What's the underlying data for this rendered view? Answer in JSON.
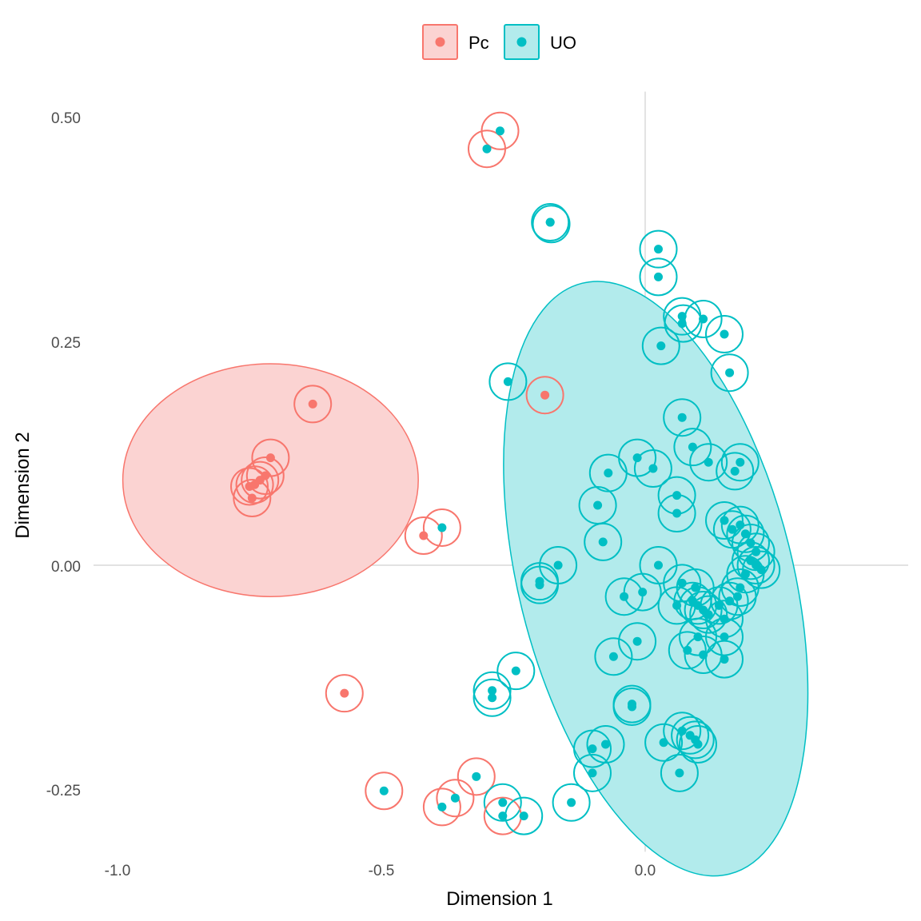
{
  "chart_data": {
    "type": "scatter",
    "xlabel": "Dimension 1",
    "ylabel": "Dimension 2",
    "xlim": [
      -1.0,
      0.4
    ],
    "ylim": [
      -0.32,
      0.52
    ],
    "x_ticks": [
      -1.0,
      -0.5,
      0.0
    ],
    "x_tick_labels": [
      "-1.0",
      "-0.5",
      "0.0"
    ],
    "y_ticks": [
      0.5,
      0.25,
      0.0,
      -0.25
    ],
    "y_tick_labels": [
      "0.50",
      "0.25",
      "0.00",
      "-0.25"
    ],
    "reference_lines": {
      "x": 0,
      "y": 0
    },
    "grid": false,
    "legend_position": "top",
    "colors": {
      "Pc": "#F8766D",
      "UO": "#00BFC4",
      "Pc_fill": "#FBD3D2",
      "UO_fill": "#B2EBEC",
      "refline": "#d0d0d0"
    },
    "series": [
      {
        "name": "Pc",
        "color": "#F8766D",
        "ellipse": {
          "center": [
            -0.71,
            0.095
          ],
          "radii": [
            0.28,
            0.13
          ],
          "angle": 0
        },
        "points": [
          {
            "x": -0.63,
            "y": 0.18,
            "cx": -0.63,
            "cy": 0.18
          },
          {
            "x": -0.71,
            "y": 0.12,
            "cx": -0.71,
            "cy": 0.12
          },
          {
            "x": -0.72,
            "y": 0.1,
            "cx": -0.72,
            "cy": 0.1
          },
          {
            "x": -0.73,
            "y": 0.095,
            "cx": -0.73,
            "cy": 0.095
          },
          {
            "x": -0.74,
            "y": 0.09,
            "cx": -0.74,
            "cy": 0.09
          },
          {
            "x": -0.745,
            "y": 0.075,
            "cx": -0.745,
            "cy": 0.075
          },
          {
            "x": -0.75,
            "y": 0.088,
            "cx": -0.75,
            "cy": 0.088
          },
          {
            "x": -0.42,
            "y": 0.033,
            "cx": -0.42,
            "cy": 0.033
          },
          {
            "x": -0.19,
            "y": 0.19,
            "cx": -0.19,
            "cy": 0.19
          },
          {
            "x": -0.57,
            "y": -0.143,
            "cx": -0.57,
            "cy": -0.143
          }
        ]
      },
      {
        "name": "UO",
        "color": "#00BFC4",
        "ellipse": {
          "center": [
            0.02,
            -0.015
          ],
          "radii": [
            0.26,
            0.34
          ],
          "angle": -14
        },
        "points": [
          {
            "x": -0.275,
            "y": 0.485,
            "cx": -0.275,
            "cy": 0.485,
            "ring": "Pc"
          },
          {
            "x": -0.3,
            "y": 0.465,
            "cx": -0.3,
            "cy": 0.465,
            "ring": "Pc"
          },
          {
            "x": -0.18,
            "y": 0.383,
            "cx": -0.18,
            "cy": 0.383
          },
          {
            "x": -0.18,
            "y": 0.383,
            "cx": -0.178,
            "cy": 0.381
          },
          {
            "x": 0.025,
            "y": 0.353,
            "cx": 0.025,
            "cy": 0.353
          },
          {
            "x": 0.025,
            "y": 0.322,
            "cx": 0.025,
            "cy": 0.322
          },
          {
            "x": 0.07,
            "y": 0.278,
            "cx": 0.07,
            "cy": 0.278
          },
          {
            "x": 0.07,
            "y": 0.27,
            "cx": 0.072,
            "cy": 0.27
          },
          {
            "x": 0.11,
            "y": 0.275,
            "cx": 0.11,
            "cy": 0.275
          },
          {
            "x": 0.15,
            "y": 0.258,
            "cx": 0.15,
            "cy": 0.258
          },
          {
            "x": 0.03,
            "y": 0.245,
            "cx": 0.03,
            "cy": 0.245
          },
          {
            "x": 0.16,
            "y": 0.215,
            "cx": 0.16,
            "cy": 0.215
          },
          {
            "x": -0.26,
            "y": 0.205,
            "cx": -0.26,
            "cy": 0.205
          },
          {
            "x": 0.07,
            "y": 0.165,
            "cx": 0.07,
            "cy": 0.165
          },
          {
            "x": 0.09,
            "y": 0.132,
            "cx": 0.09,
            "cy": 0.132
          },
          {
            "x": -0.015,
            "y": 0.12,
            "cx": -0.015,
            "cy": 0.12
          },
          {
            "x": 0.015,
            "y": 0.108,
            "cx": 0.015,
            "cy": 0.108
          },
          {
            "x": 0.12,
            "y": 0.115,
            "cx": 0.12,
            "cy": 0.115
          },
          {
            "x": 0.18,
            "y": 0.115,
            "cx": 0.18,
            "cy": 0.115
          },
          {
            "x": 0.17,
            "y": 0.105,
            "cx": 0.17,
            "cy": 0.105
          },
          {
            "x": -0.07,
            "y": 0.103,
            "cx": -0.07,
            "cy": 0.103
          },
          {
            "x": 0.06,
            "y": 0.078,
            "cx": 0.06,
            "cy": 0.078
          },
          {
            "x": -0.09,
            "y": 0.067,
            "cx": -0.09,
            "cy": 0.067
          },
          {
            "x": 0.06,
            "y": 0.058,
            "cx": 0.06,
            "cy": 0.058
          },
          {
            "x": -0.08,
            "y": 0.026,
            "cx": -0.08,
            "cy": 0.026
          },
          {
            "x": -0.165,
            "y": 0.0,
            "cx": -0.165,
            "cy": 0.0
          },
          {
            "x": -0.2,
            "y": -0.018,
            "cx": -0.2,
            "cy": -0.018
          },
          {
            "x": -0.2,
            "y": -0.022,
            "cx": -0.2,
            "cy": -0.022
          },
          {
            "x": -0.385,
            "y": 0.042,
            "cx": -0.385,
            "cy": 0.042,
            "ring": "Pc"
          },
          {
            "x": 0.15,
            "y": 0.05,
            "cx": 0.15,
            "cy": 0.05
          },
          {
            "x": 0.18,
            "y": 0.045,
            "cx": 0.18,
            "cy": 0.045
          },
          {
            "x": 0.19,
            "y": 0.035,
            "cx": 0.19,
            "cy": 0.035
          },
          {
            "x": 0.2,
            "y": 0.025,
            "cx": 0.2,
            "cy": 0.025
          },
          {
            "x": 0.21,
            "y": 0.015,
            "cx": 0.21,
            "cy": 0.015
          },
          {
            "x": 0.2,
            "y": 0.005,
            "cx": 0.2,
            "cy": 0.005
          },
          {
            "x": 0.21,
            "y": 0.0,
            "cx": 0.21,
            "cy": 0.0
          },
          {
            "x": 0.22,
            "y": -0.005,
            "cx": 0.22,
            "cy": -0.005
          },
          {
            "x": 0.19,
            "y": -0.01,
            "cx": 0.19,
            "cy": -0.01
          },
          {
            "x": 0.165,
            "y": 0.04,
            "cx": 0.165,
            "cy": 0.04
          },
          {
            "x": 0.025,
            "y": 0.0,
            "cx": 0.025,
            "cy": 0.0
          },
          {
            "x": 0.07,
            "y": -0.02,
            "cx": 0.07,
            "cy": -0.02
          },
          {
            "x": 0.095,
            "y": -0.025,
            "cx": 0.095,
            "cy": -0.025
          },
          {
            "x": 0.09,
            "y": -0.04,
            "cx": 0.09,
            "cy": -0.04
          },
          {
            "x": 0.1,
            "y": -0.045,
            "cx": 0.1,
            "cy": -0.045
          },
          {
            "x": 0.11,
            "y": -0.05,
            "cx": 0.11,
            "cy": -0.05
          },
          {
            "x": 0.12,
            "y": -0.055,
            "cx": 0.12,
            "cy": -0.055
          },
          {
            "x": 0.14,
            "y": -0.045,
            "cx": 0.14,
            "cy": -0.045
          },
          {
            "x": 0.16,
            "y": -0.04,
            "cx": 0.16,
            "cy": -0.04
          },
          {
            "x": 0.175,
            "y": -0.035,
            "cx": 0.175,
            "cy": -0.035
          },
          {
            "x": 0.18,
            "y": -0.025,
            "cx": 0.18,
            "cy": -0.025
          },
          {
            "x": 0.15,
            "y": -0.06,
            "cx": 0.15,
            "cy": -0.06
          },
          {
            "x": 0.06,
            "y": -0.045,
            "cx": 0.06,
            "cy": -0.045
          },
          {
            "x": -0.005,
            "y": -0.03,
            "cx": -0.005,
            "cy": -0.03
          },
          {
            "x": -0.04,
            "y": -0.035,
            "cx": -0.04,
            "cy": -0.035
          },
          {
            "x": 0.1,
            "y": -0.08,
            "cx": 0.1,
            "cy": -0.08
          },
          {
            "x": 0.15,
            "y": -0.08,
            "cx": 0.15,
            "cy": -0.08
          },
          {
            "x": -0.015,
            "y": -0.085,
            "cx": -0.015,
            "cy": -0.085
          },
          {
            "x": 0.08,
            "y": -0.095,
            "cx": 0.08,
            "cy": -0.095
          },
          {
            "x": 0.11,
            "y": -0.1,
            "cx": 0.11,
            "cy": -0.1
          },
          {
            "x": 0.15,
            "y": -0.105,
            "cx": 0.15,
            "cy": -0.105
          },
          {
            "x": -0.06,
            "y": -0.102,
            "cx": -0.06,
            "cy": -0.102
          },
          {
            "x": -0.025,
            "y": -0.155,
            "cx": -0.025,
            "cy": -0.155
          },
          {
            "x": -0.025,
            "y": -0.158,
            "cx": -0.025,
            "cy": -0.158
          },
          {
            "x": -0.245,
            "y": -0.118,
            "cx": -0.245,
            "cy": -0.118
          },
          {
            "x": -0.29,
            "y": -0.14,
            "cx": -0.29,
            "cy": -0.14
          },
          {
            "x": -0.29,
            "y": -0.148,
            "cx": -0.29,
            "cy": -0.148
          },
          {
            "x": 0.07,
            "y": -0.185,
            "cx": 0.07,
            "cy": -0.185
          },
          {
            "x": 0.085,
            "y": -0.19,
            "cx": 0.085,
            "cy": -0.19
          },
          {
            "x": 0.095,
            "y": -0.195,
            "cx": 0.095,
            "cy": -0.195
          },
          {
            "x": 0.1,
            "y": -0.2,
            "cx": 0.1,
            "cy": -0.2
          },
          {
            "x": 0.035,
            "y": -0.198,
            "cx": 0.035,
            "cy": -0.198
          },
          {
            "x": -0.075,
            "y": -0.2,
            "cx": -0.075,
            "cy": -0.2
          },
          {
            "x": -0.1,
            "y": -0.205,
            "cx": -0.1,
            "cy": -0.205
          },
          {
            "x": -0.1,
            "y": -0.232,
            "cx": -0.1,
            "cy": -0.232
          },
          {
            "x": 0.065,
            "y": -0.232,
            "cx": 0.065,
            "cy": -0.232
          },
          {
            "x": -0.32,
            "y": -0.236,
            "cx": -0.32,
            "cy": -0.236,
            "ring": "Pc"
          },
          {
            "x": -0.495,
            "y": -0.252,
            "cx": -0.495,
            "cy": -0.252,
            "ring": "Pc"
          },
          {
            "x": -0.36,
            "y": -0.26,
            "cx": -0.36,
            "cy": -0.26,
            "ring": "Pc"
          },
          {
            "x": -0.385,
            "y": -0.27,
            "cx": -0.385,
            "cy": -0.27,
            "ring": "Pc"
          },
          {
            "x": -0.14,
            "y": -0.265,
            "cx": -0.14,
            "cy": -0.265
          },
          {
            "x": -0.27,
            "y": -0.265,
            "cx": -0.27,
            "cy": -0.265
          },
          {
            "x": -0.27,
            "y": -0.28,
            "cx": -0.27,
            "cy": -0.28,
            "ring": "Pc"
          },
          {
            "x": -0.23,
            "y": -0.28,
            "cx": -0.23,
            "cy": -0.28
          }
        ]
      }
    ]
  },
  "legend": {
    "items": [
      {
        "label": "Pc",
        "color": "#F8766D",
        "fill": "#FBD3D2"
      },
      {
        "label": "UO",
        "color": "#00BFC4",
        "fill": "#B2EBEC"
      }
    ]
  }
}
